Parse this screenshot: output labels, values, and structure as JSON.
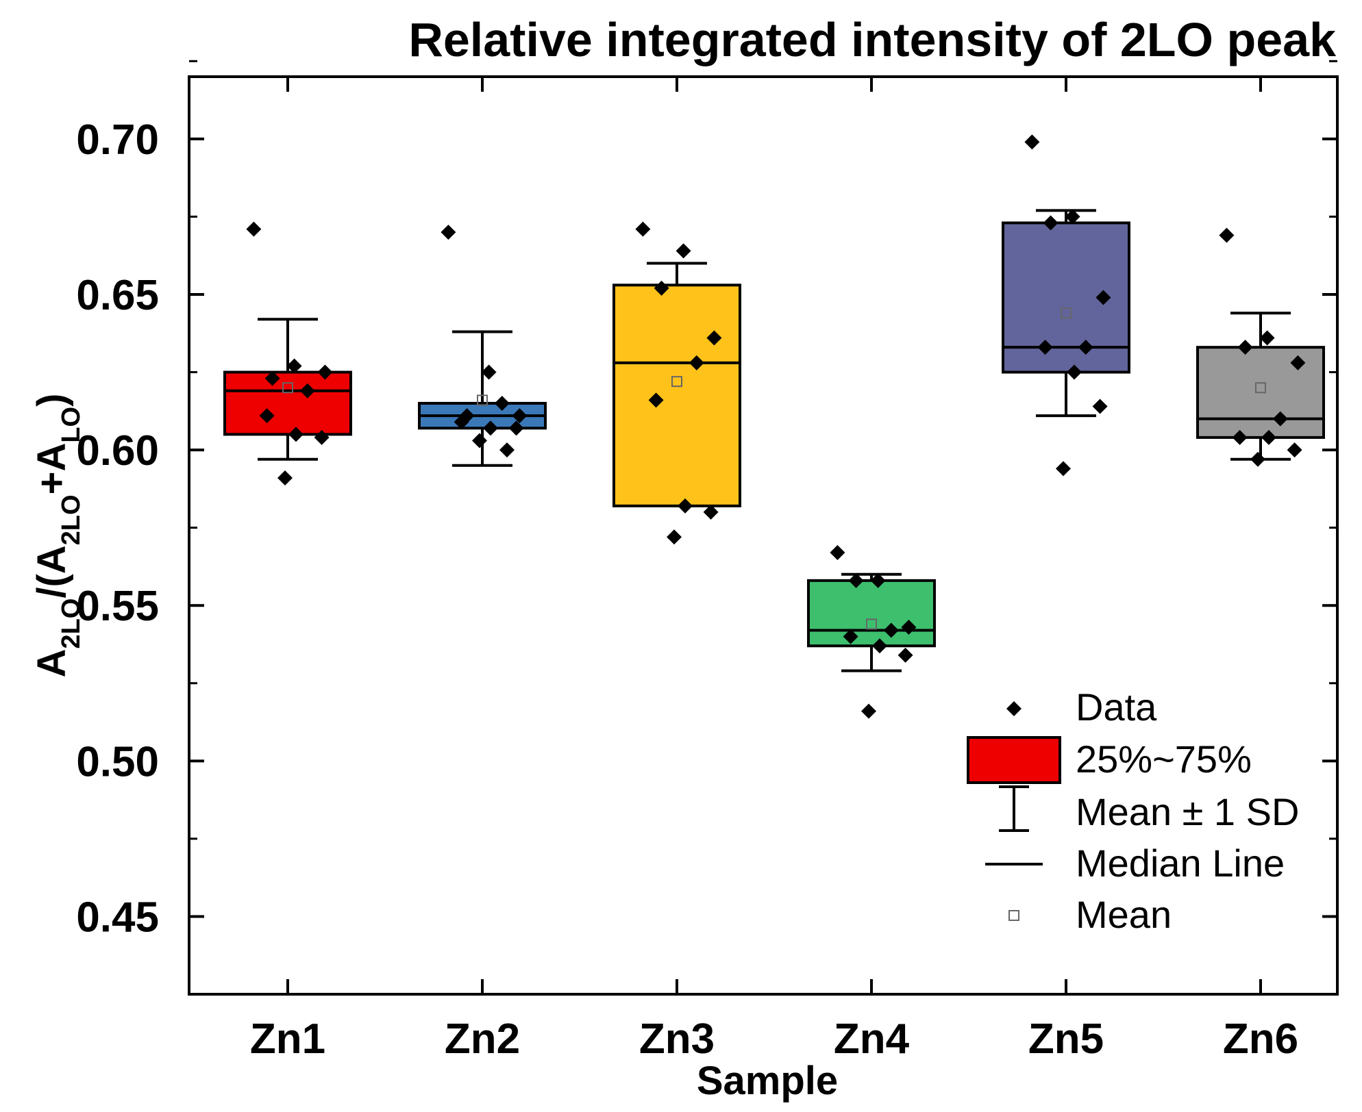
{
  "chart_data": {
    "type": "boxplot",
    "title": "Relative integrated intensity of 2LO peak",
    "xlabel": "Sample",
    "ylabel": {
      "parts": [
        {
          "text": "A",
          "sub": false
        },
        {
          "text": "2LO",
          "sub": true
        },
        {
          "text": "/(A",
          "sub": false
        },
        {
          "text": "2LO",
          "sub": true
        },
        {
          "text": "+A",
          "sub": false
        },
        {
          "text": "LO",
          "sub": true
        },
        {
          "text": ")",
          "sub": false
        }
      ]
    },
    "ylim": [
      0.425,
      0.72
    ],
    "yticks": [
      0.45,
      0.5,
      0.55,
      0.6,
      0.65,
      0.7
    ],
    "ytick_labels": [
      "0.45",
      "0.50",
      "0.55",
      "0.60",
      "0.65",
      "0.70"
    ],
    "categories": [
      "Zn1",
      "Zn2",
      "Zn3",
      "Zn4",
      "Zn5",
      "Zn6"
    ],
    "series": [
      {
        "name": "Zn1",
        "color": "#ee0000",
        "q1": 0.605,
        "q3": 0.625,
        "median": 0.619,
        "mean": 0.62,
        "sd_low": 0.597,
        "sd_high": 0.642,
        "points": [
          0.671,
          0.627,
          0.623,
          0.625,
          0.619,
          0.611,
          0.605,
          0.604,
          0.591
        ]
      },
      {
        "name": "Zn2",
        "color": "#3b78b8",
        "q1": 0.607,
        "q3": 0.615,
        "median": 0.611,
        "mean": 0.616,
        "sd_low": 0.595,
        "sd_high": 0.638,
        "points": [
          0.67,
          0.625,
          0.611,
          0.611,
          0.615,
          0.609,
          0.607,
          0.607,
          0.603,
          0.6
        ]
      },
      {
        "name": "Zn3",
        "color": "#ffc21a",
        "q1": 0.582,
        "q3": 0.653,
        "median": 0.628,
        "mean": 0.622,
        "sd_low": 0.585,
        "sd_high": 0.66,
        "points": [
          0.671,
          0.664,
          0.652,
          0.636,
          0.628,
          0.616,
          0.582,
          0.58,
          0.572
        ]
      },
      {
        "name": "Zn4",
        "color": "#3dbf6e",
        "q1": 0.537,
        "q3": 0.558,
        "median": 0.542,
        "mean": 0.544,
        "sd_low": 0.529,
        "sd_high": 0.56,
        "points": [
          0.567,
          0.558,
          0.558,
          0.543,
          0.542,
          0.54,
          0.537,
          0.534,
          0.516
        ]
      },
      {
        "name": "Zn5",
        "color": "#62659b",
        "q1": 0.625,
        "q3": 0.673,
        "median": 0.633,
        "mean": 0.644,
        "sd_low": 0.611,
        "sd_high": 0.677,
        "points": [
          0.699,
          0.675,
          0.673,
          0.649,
          0.633,
          0.633,
          0.625,
          0.614,
          0.594
        ]
      },
      {
        "name": "Zn6",
        "color": "#999999",
        "q1": 0.604,
        "q3": 0.633,
        "median": 0.61,
        "mean": 0.62,
        "sd_low": 0.597,
        "sd_high": 0.644,
        "points": [
          0.669,
          0.636,
          0.633,
          0.628,
          0.61,
          0.604,
          0.604,
          0.6,
          0.597
        ]
      }
    ],
    "legend": {
      "position": "bottom-right",
      "entries": [
        "Data",
        "25%~75%",
        "Mean ± 1 SD",
        "Median Line",
        "Mean"
      ]
    }
  }
}
